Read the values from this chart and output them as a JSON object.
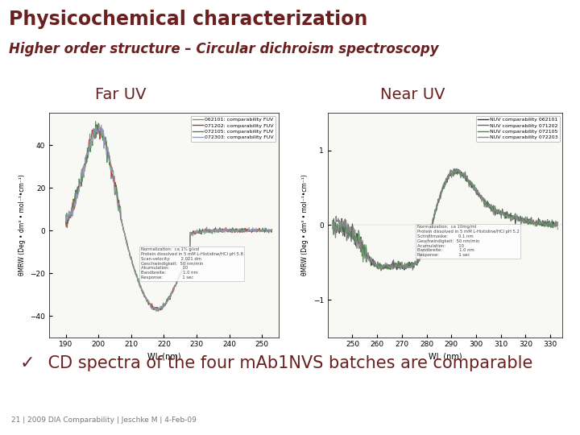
{
  "title": "Physicochemical characterization",
  "subtitle": "Higher order structure – Circular dichroism spectroscopy",
  "title_color": "#6B2020",
  "subtitle_color": "#6B2020",
  "bg_color": "#FFFFFF",
  "header_line_color": "#7B7050",
  "far_uv_label": "Far UV",
  "near_uv_label": "Near UV",
  "bullet_char": "✓",
  "bullet_text": " CD spectra of the four mAb1NVS batches are comparable",
  "footer_text": "21 | 2009 DIA Comparability | Jeschke M | 4-Feb-09",
  "label_color": "#6B2020",
  "plot_bg": "#F8F8F5",
  "far_uv": {
    "legend": [
      "062101: comparability FUV",
      "071202: comparability FUV",
      "072105: comparability FUV",
      "072303: comparability FUV"
    ],
    "colors": [
      "#888888",
      "#AA3333",
      "#448844",
      "#9999BB"
    ],
    "xlabel": "WL (nm)",
    "ylabel": "θMRW (Deg • dm³ • mol⁻¹•cm⁻¹)",
    "xlim": [
      185,
      255
    ],
    "ylim": [
      -50,
      55
    ],
    "xticks": [
      190,
      200,
      210,
      220,
      230,
      240,
      250
    ],
    "yticks": [
      -40,
      -20,
      0,
      20,
      40
    ],
    "annot": "Normalization:  ca 1% g/vol\nProtein dissolved in 5 mM L-Histidine/HCl pH 5.8\nScan-velocity:        2.021 dm\nGeschwindigkeit:  50 nm/min\nAkumulation:          10\nBandbreite:             1.0 nm\nResponse:               1 sec"
  },
  "near_uv": {
    "legend": [
      "NUV comparability 062101",
      "NUV comparability 071202",
      "NUV comparability 072105",
      "NUV comparability 072203"
    ],
    "colors": [
      "#333333",
      "#666666",
      "#448844",
      "#888888"
    ],
    "xlabel": "WL (nm)",
    "ylabel": "θMRW (Deg • dm³ • mol⁻¹•cm⁻¹)",
    "xlim": [
      240,
      335
    ],
    "ylim": [
      -1.5,
      1.5
    ],
    "xticks": [
      250,
      260,
      270,
      280,
      290,
      300,
      310,
      320,
      330
    ],
    "yticks": [
      -1,
      0,
      1
    ],
    "annot": "Normalization:  ca 10mg/ml\nProtein dissolved in 5 mM L-Histidine/HCl pH 5.2\nSchnittmaske:        0.1 nm\nGeschwindigkeit:  50 nm/min\nAcumulation:          10\nBandbreite:             1.0 nm\nResponse:               1 sec"
  }
}
